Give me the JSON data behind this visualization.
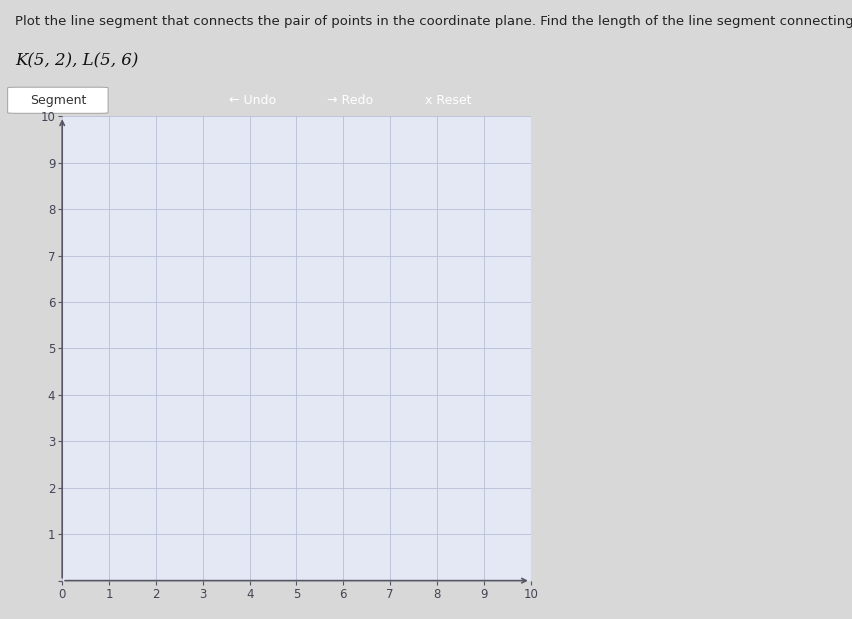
{
  "title_line1": "Plot the line segment that connects the pair of points in the coordinate plane. Find the length of the line segment connecting the points.",
  "points_label": "K(5, 2), L(5, 6)",
  "K": [
    5,
    2
  ],
  "L": [
    5,
    6
  ],
  "xlim": [
    0,
    10
  ],
  "ylim": [
    0,
    10
  ],
  "xticks": [
    0,
    1,
    2,
    3,
    4,
    5,
    6,
    7,
    8,
    9,
    10
  ],
  "yticks": [
    0,
    1,
    2,
    3,
    4,
    5,
    6,
    7,
    8,
    9,
    10
  ],
  "grid_color": "#b8bfd4",
  "grid_linewidth": 0.6,
  "axis_color": "#555566",
  "plot_bg_color": "#e4e8f4",
  "toolbar_bg": "#5b9bd5",
  "toolbar_segment_bg": "#ffffff",
  "toolbar_label": "Segment",
  "toolbar_undo": "← Undo",
  "toolbar_redo": "→ Redo",
  "toolbar_reset": "x Reset",
  "page_bg": "#d8d8d8",
  "tick_fontsize": 8.5,
  "title_fontsize": 9.5,
  "points_label_fontsize": 12,
  "toolbar_fontsize": 9,
  "blue_left_bar_color": "#3a6fd8",
  "ytick_color": "#444455"
}
